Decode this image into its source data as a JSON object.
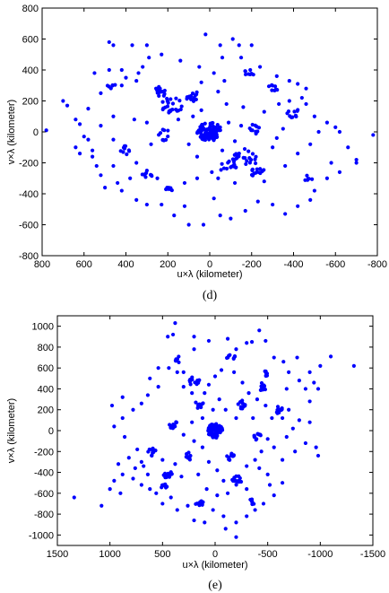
{
  "chart_data": [
    {
      "panel": "d",
      "type": "scatter",
      "caption": "(d)",
      "xlabel": "u×λ (kilometer)",
      "ylabel": "v×λ (kilometer)",
      "xlim": [
        800,
        -800
      ],
      "ylim": [
        -800,
        800
      ],
      "xticks": [
        "800",
        "600",
        "400",
        "200",
        "0",
        "-200",
        "-400",
        "-600",
        "-800"
      ],
      "yticks": [
        "800",
        "600",
        "400",
        "200",
        "0",
        "-200",
        "-400",
        "-600",
        "-800"
      ],
      "grid": false,
      "marker_color": "#0000ff",
      "clusters": [
        {
          "x": 0,
          "y": 0,
          "spread": 60,
          "n": 90
        },
        {
          "x": 180,
          "y": 170,
          "spread": 55,
          "n": 22
        },
        {
          "x": 230,
          "y": 260,
          "spread": 35,
          "n": 14
        },
        {
          "x": 90,
          "y": 230,
          "spread": 40,
          "n": 14
        },
        {
          "x": -170,
          "y": -170,
          "spread": 60,
          "n": 24
        },
        {
          "x": -230,
          "y": -260,
          "spread": 35,
          "n": 14
        },
        {
          "x": -90,
          "y": -230,
          "spread": 40,
          "n": 14
        },
        {
          "x": 400,
          "y": -120,
          "spread": 30,
          "n": 10
        },
        {
          "x": -400,
          "y": 120,
          "spread": 30,
          "n": 10
        },
        {
          "x": -300,
          "y": 280,
          "spread": 25,
          "n": 8
        },
        {
          "x": 300,
          "y": -280,
          "spread": 25,
          "n": 8
        },
        {
          "x": 190,
          "y": -380,
          "spread": 25,
          "n": 8
        },
        {
          "x": -190,
          "y": 380,
          "spread": 25,
          "n": 8
        },
        {
          "x": 220,
          "y": -20,
          "spread": 35,
          "n": 10
        },
        {
          "x": -220,
          "y": 20,
          "spread": 35,
          "n": 10
        },
        {
          "x": -470,
          "y": -300,
          "spread": 20,
          "n": 6
        },
        {
          "x": 470,
          "y": 300,
          "spread": 20,
          "n": 6
        }
      ],
      "scatter_points": [
        [
          480,
          580
        ],
        [
          460,
          560
        ],
        [
          370,
          560
        ],
        [
          300,
          560
        ],
        [
          20,
          630
        ],
        [
          -110,
          600
        ],
        [
          -140,
          560
        ],
        [
          550,
          380
        ],
        [
          480,
          400
        ],
        [
          420,
          400
        ],
        [
          400,
          350
        ],
        [
          350,
          330
        ],
        [
          420,
          300
        ],
        [
          520,
          250
        ],
        [
          700,
          200
        ],
        [
          680,
          170
        ],
        [
          640,
          80
        ],
        [
          620,
          50
        ],
        [
          580,
          150
        ],
        [
          600,
          -30
        ],
        [
          580,
          -50
        ],
        [
          780,
          10
        ],
        [
          -600,
          30
        ],
        [
          -620,
          0
        ],
        [
          -700,
          -180
        ],
        [
          -700,
          -200
        ],
        [
          -780,
          -20
        ],
        [
          -560,
          -300
        ],
        [
          -500,
          -380
        ],
        [
          -480,
          -440
        ],
        [
          -420,
          -480
        ],
        [
          -360,
          -530
        ],
        [
          -300,
          -470
        ],
        [
          -230,
          -450
        ],
        [
          -170,
          -510
        ],
        [
          -100,
          -560
        ],
        [
          -50,
          -540
        ],
        [
          -20,
          -430
        ],
        [
          30,
          -600
        ],
        [
          100,
          -600
        ],
        [
          120,
          -480
        ],
        [
          170,
          -540
        ],
        [
          230,
          -470
        ],
        [
          300,
          -470
        ],
        [
          350,
          -440
        ],
        [
          420,
          -380
        ],
        [
          500,
          -360
        ],
        [
          520,
          -280
        ],
        [
          540,
          -220
        ],
        [
          460,
          -220
        ],
        [
          560,
          -120
        ],
        [
          460,
          -50
        ],
        [
          100,
          -80
        ],
        [
          60,
          -160
        ],
        [
          -40,
          -300
        ],
        [
          -120,
          -330
        ],
        [
          -260,
          -320
        ],
        [
          -360,
          -220
        ],
        [
          -420,
          -140
        ],
        [
          -480,
          -80
        ],
        [
          -520,
          0
        ],
        [
          -560,
          60
        ],
        [
          -500,
          100
        ],
        [
          -460,
          180
        ],
        [
          -440,
          220
        ],
        [
          -380,
          200
        ],
        [
          -330,
          180
        ],
        [
          -260,
          130
        ],
        [
          -160,
          160
        ],
        [
          -80,
          180
        ],
        [
          -40,
          260
        ],
        [
          -70,
          330
        ],
        [
          -20,
          380
        ],
        [
          40,
          320
        ],
        [
          50,
          420
        ],
        [
          -60,
          480
        ],
        [
          -150,
          480
        ],
        [
          -240,
          420
        ],
        [
          -320,
          360
        ],
        [
          -380,
          330
        ],
        [
          -420,
          310
        ],
        [
          -460,
          280
        ],
        [
          140,
          460
        ],
        [
          230,
          500
        ],
        [
          290,
          480
        ],
        [
          320,
          420
        ],
        [
          340,
          380
        ],
        [
          460,
          100
        ],
        [
          520,
          40
        ],
        [
          360,
          80
        ],
        [
          300,
          60
        ],
        [
          280,
          -80
        ],
        [
          350,
          -200
        ],
        [
          300,
          -250
        ],
        [
          250,
          -300
        ],
        [
          120,
          -330
        ],
        [
          60,
          -300
        ],
        [
          -10,
          -260
        ],
        [
          -60,
          -120
        ],
        [
          150,
          80
        ],
        [
          80,
          100
        ],
        [
          40,
          140
        ],
        [
          -90,
          60
        ],
        [
          -150,
          40
        ],
        [
          -120,
          -60
        ],
        [
          -300,
          -100
        ],
        [
          -320,
          -40
        ],
        [
          -350,
          20
        ],
        [
          380,
          -300
        ],
        [
          440,
          -330
        ],
        [
          560,
          -160
        ],
        [
          -580,
          -200
        ],
        [
          -620,
          -260
        ],
        [
          -660,
          -100
        ],
        [
          640,
          -100
        ],
        [
          620,
          -140
        ],
        [
          -50,
          560
        ],
        [
          -200,
          560
        ]
      ]
    },
    {
      "panel": "e",
      "type": "scatter",
      "caption": "(e)",
      "xlabel": "u×λ (kilometer)",
      "ylabel": "v×λ (kilometer)",
      "xlim": [
        1500,
        -1500
      ],
      "ylim": [
        -1100,
        1100
      ],
      "xticks": [
        "1500",
        "1000",
        "500",
        "0",
        "-500",
        "-1000",
        "-1500"
      ],
      "yticks": [
        "1000",
        "800",
        "600",
        "400",
        "200",
        "0",
        "-200",
        "-400",
        "-600",
        "-800",
        "-1000"
      ],
      "grid": false,
      "marker_color": "#0000ff",
      "clusters": [
        {
          "x": 0,
          "y": 0,
          "spread": 70,
          "n": 80
        },
        {
          "x": 200,
          "y": 480,
          "spread": 50,
          "n": 14
        },
        {
          "x": -200,
          "y": -480,
          "spread": 50,
          "n": 14
        },
        {
          "x": 600,
          "y": -200,
          "spread": 40,
          "n": 12
        },
        {
          "x": -600,
          "y": 200,
          "spread": 40,
          "n": 12
        },
        {
          "x": 450,
          "y": -420,
          "spread": 40,
          "n": 12
        },
        {
          "x": -450,
          "y": 420,
          "spread": 40,
          "n": 12
        },
        {
          "x": 150,
          "y": 250,
          "spread": 40,
          "n": 10
        },
        {
          "x": -150,
          "y": -250,
          "spread": 40,
          "n": 10
        },
        {
          "x": 250,
          "y": -250,
          "spread": 40,
          "n": 10
        },
        {
          "x": -250,
          "y": 250,
          "spread": 40,
          "n": 10
        },
        {
          "x": 400,
          "y": 60,
          "spread": 40,
          "n": 10
        },
        {
          "x": -400,
          "y": -60,
          "spread": 40,
          "n": 10
        },
        {
          "x": -150,
          "y": 700,
          "spread": 40,
          "n": 8
        },
        {
          "x": 150,
          "y": -700,
          "spread": 40,
          "n": 8
        },
        {
          "x": -480,
          "y": 540,
          "spread": 30,
          "n": 8
        },
        {
          "x": 480,
          "y": -540,
          "spread": 30,
          "n": 8
        },
        {
          "x": 350,
          "y": 680,
          "spread": 30,
          "n": 6
        },
        {
          "x": -350,
          "y": -680,
          "spread": 30,
          "n": 6
        }
      ],
      "scatter_points": [
        [
          380,
          1030
        ],
        [
          450,
          900
        ],
        [
          200,
          900
        ],
        [
          60,
          860
        ],
        [
          -120,
          880
        ],
        [
          -300,
          840
        ],
        [
          -480,
          860
        ],
        [
          -350,
          850
        ],
        [
          -560,
          700
        ],
        [
          -650,
          660
        ],
        [
          -780,
          700
        ],
        [
          -900,
          560
        ],
        [
          -1000,
          620
        ],
        [
          -1100,
          710
        ],
        [
          -1320,
          620
        ],
        [
          -800,
          480
        ],
        [
          -680,
          400
        ],
        [
          -860,
          400
        ],
        [
          -900,
          280
        ],
        [
          -700,
          200
        ],
        [
          -640,
          120
        ],
        [
          -800,
          100
        ],
        [
          -900,
          80
        ],
        [
          -740,
          20
        ],
        [
          -680,
          -60
        ],
        [
          -500,
          -80
        ],
        [
          -560,
          -160
        ],
        [
          -440,
          -200
        ],
        [
          -380,
          -280
        ],
        [
          -300,
          -340
        ],
        [
          -420,
          -360
        ],
        [
          -500,
          -420
        ],
        [
          -520,
          -520
        ],
        [
          -640,
          -500
        ],
        [
          -560,
          -620
        ],
        [
          -460,
          -700
        ],
        [
          -380,
          -760
        ],
        [
          -300,
          -820
        ],
        [
          -200,
          -880
        ],
        [
          -100,
          -940
        ],
        [
          -200,
          -1020
        ],
        [
          -80,
          -820
        ],
        [
          20,
          -760
        ],
        [
          100,
          -880
        ],
        [
          200,
          -860
        ],
        [
          260,
          -720
        ],
        [
          360,
          -760
        ],
        [
          420,
          -640
        ],
        [
          500,
          -700
        ],
        [
          560,
          -600
        ],
        [
          620,
          -560
        ],
        [
          700,
          -520
        ],
        [
          780,
          -460
        ],
        [
          880,
          -420
        ],
        [
          960,
          -480
        ],
        [
          1080,
          -720
        ],
        [
          1340,
          -640
        ],
        [
          920,
          -320
        ],
        [
          820,
          -260
        ],
        [
          740,
          -180
        ],
        [
          860,
          -60
        ],
        [
          960,
          40
        ],
        [
          880,
          120
        ],
        [
          780,
          200
        ],
        [
          700,
          260
        ],
        [
          640,
          340
        ],
        [
          540,
          420
        ],
        [
          620,
          500
        ],
        [
          540,
          600
        ],
        [
          440,
          600
        ],
        [
          360,
          560
        ],
        [
          300,
          420
        ],
        [
          220,
          360
        ],
        [
          100,
          360
        ],
        [
          60,
          440
        ],
        [
          0,
          520
        ],
        [
          -60,
          580
        ],
        [
          -180,
          560
        ],
        [
          -260,
          460
        ],
        [
          -320,
          360
        ],
        [
          -400,
          300
        ],
        [
          -480,
          240
        ],
        [
          -540,
          120
        ],
        [
          -360,
          120
        ],
        [
          -200,
          120
        ],
        [
          -100,
          200
        ],
        [
          -40,
          300
        ],
        [
          20,
          200
        ],
        [
          120,
          120
        ],
        [
          220,
          80
        ],
        [
          300,
          -40
        ],
        [
          200,
          -100
        ],
        [
          120,
          -160
        ],
        [
          60,
          -300
        ],
        [
          -20,
          -380
        ],
        [
          -80,
          -480
        ],
        [
          -120,
          -600
        ],
        [
          -20,
          -620
        ],
        [
          80,
          -560
        ],
        [
          160,
          -420
        ],
        [
          320,
          -440
        ],
        [
          380,
          -320
        ],
        [
          500,
          -280
        ],
        [
          680,
          -340
        ],
        [
          760,
          -360
        ],
        [
          640,
          -420
        ],
        [
          -640,
          -280
        ],
        [
          -760,
          -200
        ],
        [
          -860,
          -120
        ],
        [
          -960,
          -160
        ],
        [
          -980,
          -240
        ],
        [
          900,
          -600
        ],
        [
          1000,
          -560
        ],
        [
          -980,
          400
        ],
        [
          -940,
          460
        ],
        [
          980,
          240
        ],
        [
          880,
          320
        ],
        [
          -420,
          960
        ],
        [
          400,
          920
        ],
        [
          -200,
          780
        ],
        [
          200,
          780
        ],
        [
          -700,
          560
        ],
        [
          700,
          -300
        ],
        [
          -300,
          -560
        ],
        [
          300,
          560
        ]
      ]
    }
  ]
}
